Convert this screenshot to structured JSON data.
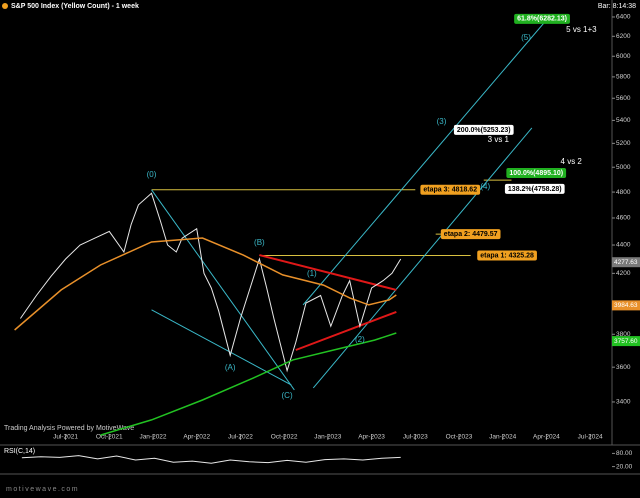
{
  "header": {
    "title": "S&P 500 Index (Yellow Count) - 1 week",
    "bar": "Bar: 8:14:38"
  },
  "chart_data": [
    {
      "type": "line",
      "log_scale": true,
      "xlim": [
        1.5,
        43.5
      ],
      "ylim": [
        3194,
        6581
      ],
      "yticks": [
        3400,
        3600,
        3800,
        4000,
        4200,
        4400,
        4600,
        4800,
        5000,
        5200,
        5400,
        5600,
        5800,
        6000,
        6200,
        6400
      ],
      "xticks": [
        {
          "value": 6,
          "label": "Jul-2021"
        },
        {
          "value": 9,
          "label": "Oct-2021"
        },
        {
          "value": 12,
          "label": "Jan-2022"
        },
        {
          "value": 15,
          "label": "Apr-2022"
        },
        {
          "value": 18,
          "label": "Jul-2022"
        },
        {
          "value": 21,
          "label": "Oct-2022"
        },
        {
          "value": 24,
          "label": "Jan-2023"
        },
        {
          "value": 27,
          "label": "Apr-2023"
        },
        {
          "value": 30,
          "label": "Jul-2023"
        },
        {
          "value": 33,
          "label": "Oct-2023"
        },
        {
          "value": 36,
          "label": "Jan-2024"
        },
        {
          "value": 39,
          "label": "Apr-2024"
        },
        {
          "value": 42,
          "label": "Jul-2024"
        }
      ],
      "series": [
        {
          "color": "#e8e8e8",
          "x": [
            2.9,
            4,
            5,
            6,
            7,
            8,
            9,
            10,
            10.5,
            11,
            11.9,
            12.5,
            13,
            13.6,
            14,
            15,
            15.5,
            16,
            16.5,
            17.3,
            18,
            19.3,
            19.8,
            20.3,
            21.2,
            21.8,
            22.5,
            23.5,
            24.2,
            25,
            25.5,
            26.2,
            27,
            27.8,
            28.4,
            29
          ],
          "values": [
            3900,
            4050,
            4180,
            4300,
            4400,
            4450,
            4500,
            4350,
            4550,
            4700,
            4790,
            4580,
            4400,
            4350,
            4450,
            4520,
            4200,
            4100,
            3950,
            3670,
            3900,
            4300,
            4100,
            3900,
            3580,
            3750,
            4000,
            4050,
            3850,
            4050,
            4150,
            3850,
            4100,
            4150,
            4200,
            4300
          ]
        },
        {
          "color": "#e8902a",
          "x": [
            2.5,
            5.7,
            8.4,
            11.9,
            15.4,
            18.2,
            20.9,
            23.7,
            25.5,
            26.8,
            28.2,
            28.7
          ],
          "values": [
            3827,
            4087,
            4258,
            4422,
            4451,
            4328,
            4189,
            4120,
            4034,
            3988,
            4021,
            4053
          ]
        },
        {
          "color": "#22c222",
          "x": [
            8.4,
            11.9,
            15.4,
            18.9,
            21.6,
            24.4,
            27.2,
            28.7
          ],
          "values": [
            3220,
            3301,
            3411,
            3537,
            3643,
            3703,
            3764,
            3808
          ]
        }
      ],
      "lines": [
        {
          "color": "#d8c040",
          "x": [
            11.9,
            30
          ],
          "y": [
            4818.62,
            4818.62
          ]
        },
        {
          "color": "#d8c040",
          "x": [
            19.3,
            33.8
          ],
          "y": [
            4325.28,
            4325.28
          ]
        },
        {
          "color": "#d8c040",
          "x": [
            31.4,
            32.4
          ],
          "y": [
            4479.57,
            4479.57
          ]
        },
        {
          "color": "#d8c040",
          "x": [
            34.7,
            36.6
          ],
          "y": [
            4895.1,
            4895.1
          ]
        },
        {
          "color": "#3ab8c8",
          "x": [
            11.9,
            21.7
          ],
          "y": [
            4818,
            3468
          ]
        },
        {
          "color": "#3ab8c8",
          "x": [
            11.9,
            21.5
          ],
          "y": [
            3956,
            3496
          ]
        },
        {
          "color": "#3ab8c8",
          "x": [
            22.3,
            39.3
          ],
          "y": [
            3988,
            6421
          ]
        },
        {
          "color": "#3ab8c8",
          "x": [
            23,
            38
          ],
          "y": [
            3479,
            5333
          ]
        },
        {
          "color": "#e01818",
          "x": [
            19.3,
            28.7
          ],
          "y": [
            4328,
            4087
          ]
        },
        {
          "color": "#e01818",
          "x": [
            21.8,
            28.7
          ],
          "y": [
            3703,
            3942
          ]
        }
      ],
      "annotations": [
        {
          "text": "(0)",
          "x": 11.9,
          "y": 4936,
          "color": "#3ab8c8"
        },
        {
          "text": "(A)",
          "x": 17.3,
          "y": 3595,
          "color": "#3ab8c8"
        },
        {
          "text": "(B)",
          "x": 19.3,
          "y": 4415,
          "color": "#3ab8c8"
        },
        {
          "text": "(C)",
          "x": 21.2,
          "y": 3433,
          "color": "#3ab8c8"
        },
        {
          "text": "(1)",
          "x": 22.9,
          "y": 4196,
          "color": "#3ab8c8"
        },
        {
          "text": "(2)",
          "x": 26.2,
          "y": 3764,
          "color": "#3ab8c8"
        },
        {
          "text": "(3)",
          "x": 31.8,
          "y": 5386,
          "color": "#3ab8c8"
        },
        {
          "text": "(4)",
          "x": 34.8,
          "y": 4840,
          "color": "#3ab8c8"
        },
        {
          "text": "(5)",
          "x": 37.6,
          "y": 6183,
          "color": "#3ab8c8"
        },
        {
          "text": "etapa 3: 4818.62",
          "x": 32.4,
          "y": 4818.62,
          "color": "#000000",
          "box": "#f0a020"
        },
        {
          "text": "etapa 2: 4479.57",
          "x": 33.8,
          "y": 4479.57,
          "color": "#000000",
          "box": "#f0a020"
        },
        {
          "text": "etapa 1: 4325.28",
          "x": 36.3,
          "y": 4325.28,
          "color": "#000000",
          "box": "#f0a020"
        },
        {
          "text": "61.8%(6282.13)",
          "x": 38.7,
          "y": 6380,
          "color": "#ffffff",
          "box": "#20b020"
        },
        {
          "text": "5 vs 1+3",
          "x": 41.4,
          "y": 6265,
          "color": "#ffffff"
        },
        {
          "text": "200.0%(5253.23)",
          "x": 34.7,
          "y": 5316,
          "color": "#000000",
          "box": "#ffffff"
        },
        {
          "text": "3 vs 1",
          "x": 35.7,
          "y": 5229,
          "color": "#ffffff"
        },
        {
          "text": "4 vs 2",
          "x": 40.7,
          "y": 5043,
          "color": "#ffffff"
        },
        {
          "text": "100.0%(4895.10)",
          "x": 38.3,
          "y": 4953,
          "color": "#ffffff",
          "box": "#20b020"
        },
        {
          "text": "138.2%(4758.28)",
          "x": 38.2,
          "y": 4825,
          "color": "#000000",
          "box": "#ffffff"
        }
      ],
      "price_labels": [
        {
          "value": 4277.63,
          "label": "4277.63",
          "color": "#7a7a7a"
        },
        {
          "value": 3984.63,
          "label": "3984.63",
          "color": "#e8902a"
        },
        {
          "value": 3757.6,
          "label": "3757.60",
          "color": "#22c222"
        }
      ],
      "footnote": "Trading Analysis Powered by MotiveWave"
    },
    {
      "type": "line",
      "title": "RSI(C,14)",
      "xlim": [
        1.5,
        43.5
      ],
      "ylim": [
        0,
        100
      ],
      "yticks": [
        {
          "value": 80,
          "label": "80.00"
        },
        {
          "value": 20,
          "label": "20.00"
        }
      ],
      "series": [
        {
          "color": "#e8e8e8",
          "x": [
            3,
            4.3,
            5.6,
            6.9,
            8.2,
            9.5,
            10.8,
            12.1,
            13.4,
            14.7,
            16,
            17.3,
            18.6,
            19.9,
            21.2,
            22.5,
            23.8,
            25.1,
            26.4,
            27.7,
            29
          ],
          "values": [
            60,
            65,
            62,
            70,
            55,
            68,
            50,
            58,
            40,
            45,
            35,
            50,
            42,
            38,
            48,
            40,
            52,
            55,
            50,
            58,
            62
          ]
        }
      ]
    }
  ],
  "footer": "motivewave.com"
}
